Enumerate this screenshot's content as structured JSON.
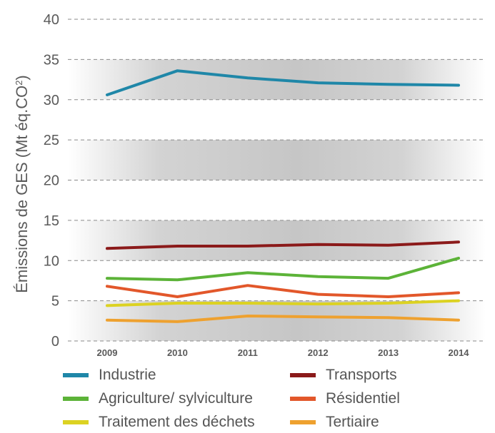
{
  "chart_data": {
    "type": "line",
    "ylabel": "Émissions de GES (Mt éq.CO2)",
    "ylabel_subscript": "2",
    "ylim": [
      0,
      40
    ],
    "yticks": [
      "0",
      "5",
      "10",
      "15",
      "20",
      "25",
      "30",
      "35",
      "40"
    ],
    "categories": [
      "2009",
      "2010",
      "2011",
      "2012",
      "2013",
      "2014"
    ],
    "grid": true,
    "legend_position": "bottom",
    "series": [
      {
        "name": "Industrie",
        "color": "#1f87a8",
        "values": [
          30.6,
          33.6,
          32.7,
          32.1,
          31.9,
          31.8
        ]
      },
      {
        "name": "Transports",
        "color": "#8b1a1a",
        "values": [
          11.5,
          11.8,
          11.8,
          12.0,
          11.9,
          12.3
        ]
      },
      {
        "name": "Agriculture/ sylviculture",
        "color": "#5cb338",
        "values": [
          7.8,
          7.6,
          8.5,
          8.0,
          7.8,
          10.3
        ]
      },
      {
        "name": "Résidentiel",
        "color": "#e2572a",
        "values": [
          6.8,
          5.5,
          6.9,
          5.8,
          5.5,
          6.0
        ]
      },
      {
        "name": "Traitement des déchets",
        "color": "#dcd222",
        "values": [
          4.4,
          4.7,
          4.7,
          4.6,
          4.7,
          5.0
        ]
      },
      {
        "name": "Tertiaire",
        "color": "#eea12f",
        "values": [
          2.6,
          2.4,
          3.1,
          3.0,
          2.9,
          2.6
        ]
      }
    ]
  }
}
